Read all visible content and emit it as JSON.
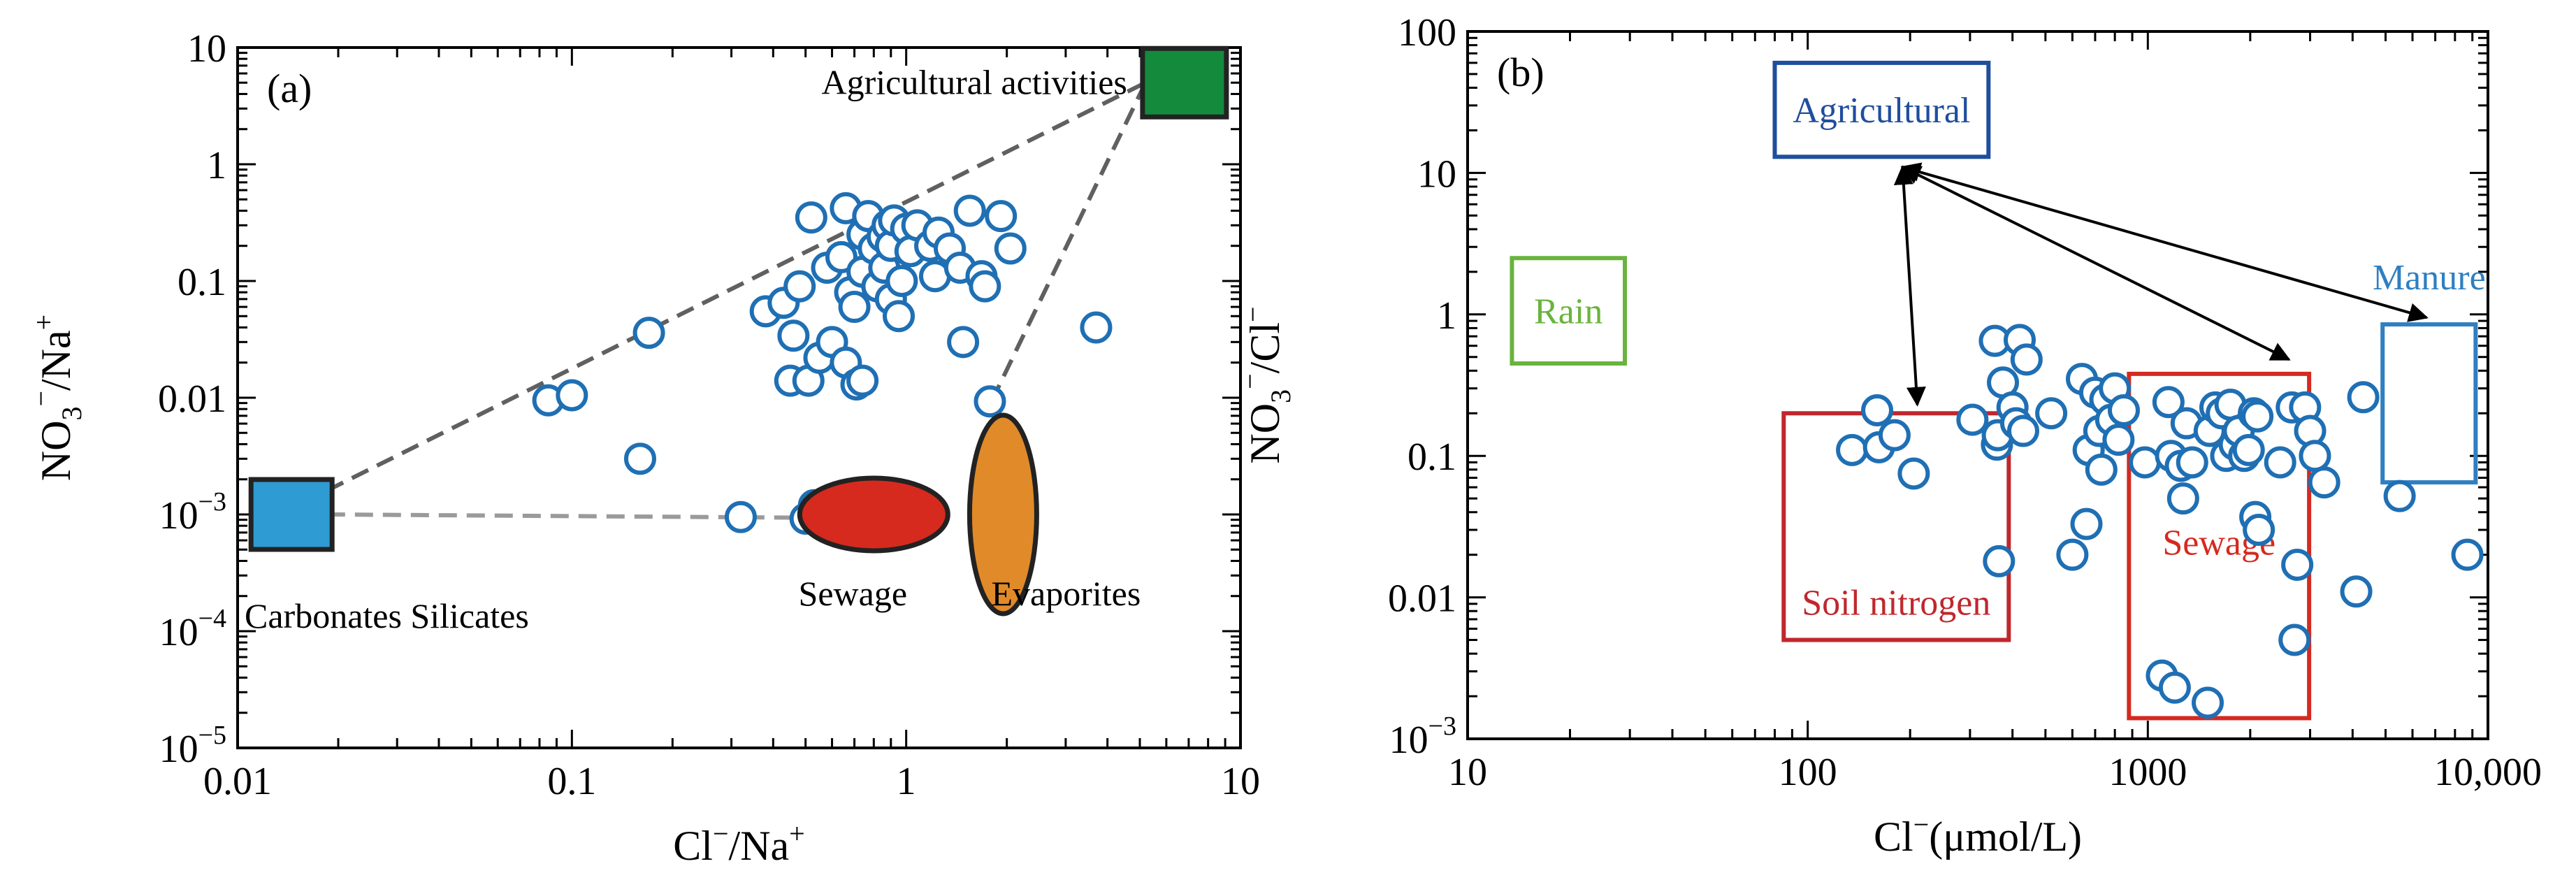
{
  "chart_data": [
    {
      "type": "scatter",
      "panel": "(a)",
      "xlabel": {
        "base": "Cl",
        "sup1": "−",
        "mid": "/Na",
        "sup2": "+"
      },
      "ylabel": {
        "base": "NO",
        "sub": "3",
        "sup1": "−",
        "mid": "/Na",
        "sup2": "+"
      },
      "xscale": "log",
      "yscale": "log",
      "xlim": [
        0.01,
        10
      ],
      "ylim": [
        1e-05,
        10
      ],
      "xticks": [
        "0.01",
        "0.1",
        "1",
        "10"
      ],
      "yticks": [
        {
          "value": 1e-05,
          "base": "10",
          "exp": "−5"
        },
        {
          "value": 0.0001,
          "base": "10",
          "exp": "−4"
        },
        {
          "value": 0.001,
          "base": "10",
          "exp": "−3"
        },
        {
          "value": 0.01,
          "text": "0.01"
        },
        {
          "value": 0.1,
          "text": "0.1"
        },
        {
          "value": 1,
          "text": "1"
        },
        {
          "value": 10,
          "text": "10"
        }
      ],
      "marker_color": "#1f6fb4",
      "endmembers": [
        {
          "label": "Agricultural activities",
          "shape": "rect",
          "color": "#138a3c",
          "x": 6.8,
          "y": 5,
          "label_pos": "left"
        },
        {
          "label": "Carbonates Silicates",
          "shape": "rect",
          "color": "#2f9bd3",
          "x": 0.0145,
          "y": 0.001,
          "label_pos": "below"
        },
        {
          "label": "Sewage",
          "shape": "ellipse",
          "color": "#d62a1e",
          "x": 0.8,
          "y": 0.001,
          "label_pos": "below"
        },
        {
          "label": "Evaporites",
          "shape": "ellipse",
          "color": "#e08a2a",
          "x": 1.95,
          "y": 0.001,
          "label_pos": "below"
        }
      ],
      "mixing_lines": [
        [
          [
            0.0185,
            0.0016
          ],
          [
            5.2,
            5
          ]
        ],
        [
          [
            0.0185,
            0.001
          ],
          [
            0.45,
            0.00094
          ]
        ],
        [
          [
            1.8,
            0.0093
          ],
          [
            5.2,
            5
          ]
        ]
      ],
      "points": [
        [
          0.085,
          0.0095
        ],
        [
          0.1,
          0.0105
        ],
        [
          0.16,
          0.003
        ],
        [
          0.17,
          0.036
        ],
        [
          0.32,
          0.00095
        ],
        [
          0.38,
          0.055
        ],
        [
          0.43,
          0.065
        ],
        [
          0.45,
          0.014
        ],
        [
          0.46,
          0.034
        ],
        [
          0.48,
          0.09
        ],
        [
          0.5,
          0.00092
        ],
        [
          0.51,
          0.014
        ],
        [
          0.53,
          0.0012
        ],
        [
          0.52,
          0.35
        ],
        [
          0.55,
          0.022
        ],
        [
          0.58,
          0.13
        ],
        [
          0.6,
          0.03
        ],
        [
          0.64,
          0.16
        ],
        [
          0.66,
          0.02
        ],
        [
          0.66,
          0.42
        ],
        [
          0.68,
          0.08
        ],
        [
          0.7,
          0.06
        ],
        [
          0.71,
          0.013
        ],
        [
          0.74,
          0.12
        ],
        [
          0.74,
          0.014
        ],
        [
          0.74,
          0.25
        ],
        [
          0.77,
          0.36
        ],
        [
          0.8,
          0.19
        ],
        [
          0.82,
          0.09
        ],
        [
          0.85,
          0.24
        ],
        [
          0.86,
          0.13
        ],
        [
          0.88,
          0.3
        ],
        [
          0.9,
          0.07
        ],
        [
          0.9,
          0.2
        ],
        [
          0.92,
          0.33
        ],
        [
          0.95,
          0.05
        ],
        [
          0.97,
          0.1
        ],
        [
          1.0,
          0.28
        ],
        [
          1.03,
          0.18
        ],
        [
          1.08,
          0.3
        ],
        [
          1.18,
          0.2
        ],
        [
          1.22,
          0.11
        ],
        [
          1.25,
          0.26
        ],
        [
          1.35,
          0.19
        ],
        [
          1.45,
          0.13
        ],
        [
          1.48,
          0.03
        ],
        [
          1.55,
          0.4
        ],
        [
          1.68,
          0.11
        ],
        [
          1.72,
          0.09
        ],
        [
          1.78,
          0.0093
        ],
        [
          1.92,
          0.36
        ],
        [
          2.05,
          0.19
        ],
        [
          3.7,
          0.04
        ]
      ]
    },
    {
      "type": "scatter",
      "panel": "(b)",
      "xlabel": {
        "base": "Cl",
        "sup1": "−",
        "mid": "(μmol/L)"
      },
      "ylabel": {
        "base": "NO",
        "sub": "3",
        "sup1": "−",
        "mid": "/Cl",
        "sup2": "−"
      },
      "xscale": "log",
      "yscale": "log",
      "xlim": [
        10,
        10000
      ],
      "ylim": [
        0.001,
        100
      ],
      "xticks": [
        "10",
        "100",
        "1000",
        "10,000"
      ],
      "yticks": [
        {
          "value": 0.001,
          "base": "10",
          "exp": "−3"
        },
        {
          "value": 0.01,
          "text": "0.01"
        },
        {
          "value": 0.1,
          "text": "0.1"
        },
        {
          "value": 1,
          "text": "1"
        },
        {
          "value": 10,
          "text": "10"
        },
        {
          "value": 100,
          "text": "100"
        }
      ],
      "marker_color": "#1f6fb4",
      "source_boxes": [
        {
          "label": "Agricultural",
          "color": "#1f4e9e",
          "x_range": [
            80,
            340
          ],
          "y_range": [
            13,
            60
          ],
          "label_pos": "inside"
        },
        {
          "label": "Rain",
          "color": "#6ab33e",
          "x_range": [
            13.5,
            29
          ],
          "y_range": [
            0.45,
            2.5
          ],
          "label_pos": "inside"
        },
        {
          "label": "Manure",
          "color": "#2f7fc1",
          "x_range": [
            4900,
            9200
          ],
          "y_range": [
            0.065,
            0.85
          ],
          "label_pos": "above"
        },
        {
          "label": "Soil nitrogen",
          "color": "#c0272d",
          "x_range": [
            85,
            390
          ],
          "y_range": [
            0.005,
            0.2
          ],
          "label_pos": "inside-bottom"
        },
        {
          "label": "Sewage",
          "color": "#d42a20",
          "x_range": [
            880,
            2980
          ],
          "y_range": [
            0.0014,
            0.38
          ],
          "label_pos": "inside"
        }
      ],
      "arrows": [
        [
          [
            190,
            11
          ],
          [
            210,
            0.23
          ]
        ],
        [
          [
            190,
            11
          ],
          [
            2600,
            0.48
          ]
        ],
        [
          [
            190,
            11
          ],
          [
            6600,
            0.95
          ]
        ]
      ],
      "points": [
        [
          135,
          0.11
        ],
        [
          160,
          0.21
        ],
        [
          162,
          0.115
        ],
        [
          180,
          0.14
        ],
        [
          205,
          0.075
        ],
        [
          305,
          0.18
        ],
        [
          355,
          0.65
        ],
        [
          360,
          0.12
        ],
        [
          362,
          0.14
        ],
        [
          365,
          0.018
        ],
        [
          375,
          0.33
        ],
        [
          400,
          0.22
        ],
        [
          410,
          0.17
        ],
        [
          420,
          0.66
        ],
        [
          430,
          0.15
        ],
        [
          440,
          0.48
        ],
        [
          520,
          0.2
        ],
        [
          600,
          0.02
        ],
        [
          640,
          0.35
        ],
        [
          660,
          0.033
        ],
        [
          670,
          0.11
        ],
        [
          700,
          0.28
        ],
        [
          720,
          0.15
        ],
        [
          730,
          0.08
        ],
        [
          750,
          0.25
        ],
        [
          780,
          0.18
        ],
        [
          800,
          0.3
        ],
        [
          820,
          0.13
        ],
        [
          850,
          0.21
        ],
        [
          980,
          0.09
        ],
        [
          1100,
          0.0028
        ],
        [
          1150,
          0.24
        ],
        [
          1170,
          0.1
        ],
        [
          1200,
          0.0023
        ],
        [
          1250,
          0.085
        ],
        [
          1270,
          0.05
        ],
        [
          1300,
          0.17
        ],
        [
          1350,
          0.09
        ],
        [
          1500,
          0.0018
        ],
        [
          1520,
          0.15
        ],
        [
          1580,
          0.22
        ],
        [
          1650,
          0.2
        ],
        [
          1700,
          0.1
        ],
        [
          1750,
          0.23
        ],
        [
          1800,
          0.12
        ],
        [
          1850,
          0.15
        ],
        [
          1920,
          0.1
        ],
        [
          1980,
          0.11
        ],
        [
          2050,
          0.2
        ],
        [
          2070,
          0.037
        ],
        [
          2100,
          0.19
        ],
        [
          2120,
          0.03
        ],
        [
          2450,
          0.09
        ],
        [
          2650,
          0.22
        ],
        [
          2700,
          0.005
        ],
        [
          2750,
          0.017
        ],
        [
          2900,
          0.22
        ],
        [
          3000,
          0.15
        ],
        [
          3100,
          0.1
        ],
        [
          3300,
          0.065
        ],
        [
          4100,
          0.011
        ],
        [
          4300,
          0.26
        ],
        [
          5500,
          0.052
        ],
        [
          8700,
          0.02
        ]
      ]
    }
  ]
}
